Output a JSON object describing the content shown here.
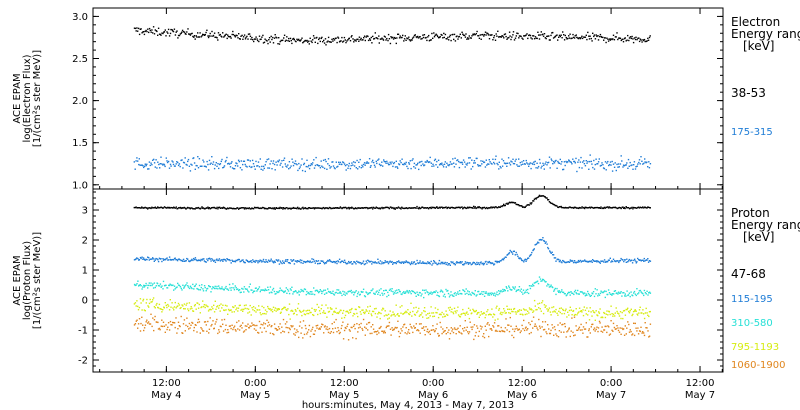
{
  "chart_data": {
    "type": "scatter",
    "x_axis": {
      "ticks": [
        {
          "top": "12:00",
          "bottom": "May 4"
        },
        {
          "top": "0:00",
          "bottom": "May 5"
        },
        {
          "top": "12:00",
          "bottom": "May 5"
        },
        {
          "top": "0:00",
          "bottom": "May 6"
        },
        {
          "top": "12:00",
          "bottom": "May 6"
        },
        {
          "top": "0:00",
          "bottom": "May 7"
        },
        {
          "top": "12:00",
          "bottom": "May 7"
        }
      ],
      "tick_hours_from_may4_0000": [
        12,
        24,
        36,
        48,
        60,
        72,
        84
      ],
      "range_hours": [
        2.1,
        87.1
      ],
      "data_end_hours": 77.2,
      "title": "hours:minutes, May  4, 2013 - May  7, 2013"
    },
    "panels": [
      {
        "name": "electron",
        "ylabel": [
          "ACE EPAM",
          "log(Electron Flux)",
          "[1/(cm²s ster MeV)]"
        ],
        "ylim": [
          0.95,
          3.1
        ],
        "yticks": [
          "1.0",
          "1.5",
          "2.0",
          "2.5",
          "3.0"
        ],
        "ytick_values": [
          1.0,
          1.5,
          2.0,
          2.5,
          3.0
        ],
        "legend_title": [
          "Electron",
          "Energy range",
          "[keV]"
        ],
        "series": [
          {
            "name": "38-53",
            "color": "#000000",
            "values_by_day": [
              2.85,
              2.72,
              2.78,
              2.74
            ],
            "noise": 0.05
          },
          {
            "name": "175-315",
            "color": "#1e7cd6",
            "values_by_day": [
              1.26,
              1.25,
              1.27,
              1.25
            ],
            "noise": 0.07
          }
        ]
      },
      {
        "name": "proton",
        "ylabel": [
          "ACE EPAM",
          "log(Proton Flux)",
          "[1/(cm²s ster MeV)]"
        ],
        "ylim": [
          -2.4,
          3.7
        ],
        "yticks": [
          "-2",
          "-1",
          "0",
          "1",
          "2",
          "3"
        ],
        "ytick_values": [
          -2,
          -1,
          0,
          1,
          2,
          3
        ],
        "legend_title": [
          "Proton",
          "Energy range",
          "[keV]"
        ],
        "series": [
          {
            "name": "47-68",
            "color": "#000000",
            "values_by_day": [
              3.1,
              3.08,
              3.1,
              3.1
            ],
            "noise": 0.03,
            "event_peak": 0.4
          },
          {
            "name": "115-195",
            "color": "#1e7cd6",
            "values_by_day": [
              1.4,
              1.3,
              1.25,
              1.35
            ],
            "noise": 0.07,
            "event_peak": 0.75
          },
          {
            "name": "310-580",
            "color": "#27e0d6",
            "values_by_day": [
              0.55,
              0.3,
              0.25,
              0.25
            ],
            "noise": 0.12,
            "event_peak": 0.45
          },
          {
            "name": "795-1193",
            "color": "#d6ec10",
            "values_by_day": [
              -0.1,
              -0.35,
              -0.4,
              -0.4
            ],
            "noise": 0.2,
            "event_peak": 0.15
          },
          {
            "name": "1060-1900",
            "color": "#e0861e",
            "values_by_day": [
              -0.75,
              -0.95,
              -0.95,
              -0.95
            ],
            "noise": 0.28,
            "event_peak": 0.1
          }
        ]
      }
    ],
    "grid": false
  }
}
